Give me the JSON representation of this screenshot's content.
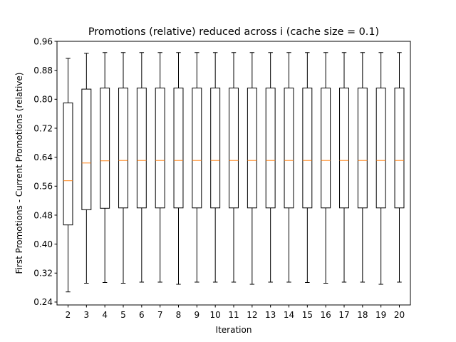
{
  "chart_data": {
    "type": "box",
    "title": "Promotions (relative) reduced across i (cache size = 0.1)",
    "xlabel": "Iteration",
    "ylabel": "First Promotions - Current Promotions (relative)",
    "ylim": [
      0.232,
      0.96
    ],
    "yticks": [
      "0.24",
      "0.32",
      "0.40",
      "0.48",
      "0.56",
      "0.64",
      "0.72",
      "0.80",
      "0.88",
      "0.96"
    ],
    "categories": [
      "2",
      "3",
      "4",
      "5",
      "6",
      "7",
      "8",
      "9",
      "10",
      "11",
      "12",
      "13",
      "14",
      "15",
      "16",
      "17",
      "18",
      "19",
      "20"
    ],
    "boxes": [
      {
        "whislo": 0.268,
        "q1": 0.453,
        "med": 0.575,
        "q3": 0.79,
        "whishi": 0.913
      },
      {
        "whislo": 0.292,
        "q1": 0.495,
        "med": 0.624,
        "q3": 0.828,
        "whishi": 0.927
      },
      {
        "whislo": 0.294,
        "q1": 0.499,
        "med": 0.63,
        "q3": 0.831,
        "whishi": 0.929
      },
      {
        "whislo": 0.292,
        "q1": 0.5,
        "med": 0.631,
        "q3": 0.831,
        "whishi": 0.929
      },
      {
        "whislo": 0.295,
        "q1": 0.5,
        "med": 0.631,
        "q3": 0.831,
        "whishi": 0.929
      },
      {
        "whislo": 0.295,
        "q1": 0.5,
        "med": 0.631,
        "q3": 0.831,
        "whishi": 0.929
      },
      {
        "whislo": 0.289,
        "q1": 0.5,
        "med": 0.631,
        "q3": 0.831,
        "whishi": 0.929
      },
      {
        "whislo": 0.295,
        "q1": 0.5,
        "med": 0.631,
        "q3": 0.831,
        "whishi": 0.929
      },
      {
        "whislo": 0.295,
        "q1": 0.5,
        "med": 0.631,
        "q3": 0.831,
        "whishi": 0.929
      },
      {
        "whislo": 0.295,
        "q1": 0.5,
        "med": 0.631,
        "q3": 0.831,
        "whishi": 0.929
      },
      {
        "whislo": 0.289,
        "q1": 0.5,
        "med": 0.631,
        "q3": 0.831,
        "whishi": 0.929
      },
      {
        "whislo": 0.295,
        "q1": 0.5,
        "med": 0.631,
        "q3": 0.831,
        "whishi": 0.929
      },
      {
        "whislo": 0.295,
        "q1": 0.5,
        "med": 0.631,
        "q3": 0.831,
        "whishi": 0.929
      },
      {
        "whislo": 0.294,
        "q1": 0.5,
        "med": 0.631,
        "q3": 0.831,
        "whishi": 0.929
      },
      {
        "whislo": 0.292,
        "q1": 0.5,
        "med": 0.631,
        "q3": 0.831,
        "whishi": 0.929
      },
      {
        "whislo": 0.295,
        "q1": 0.5,
        "med": 0.631,
        "q3": 0.831,
        "whishi": 0.929
      },
      {
        "whislo": 0.295,
        "q1": 0.5,
        "med": 0.631,
        "q3": 0.831,
        "whishi": 0.929
      },
      {
        "whislo": 0.289,
        "q1": 0.5,
        "med": 0.631,
        "q3": 0.831,
        "whishi": 0.929
      },
      {
        "whislo": 0.295,
        "q1": 0.5,
        "med": 0.631,
        "q3": 0.831,
        "whishi": 0.929
      }
    ],
    "grid": false,
    "legend": "none",
    "colors": {
      "box": "#000000",
      "median": "#ff7f0e",
      "background": "#ffffff"
    }
  }
}
